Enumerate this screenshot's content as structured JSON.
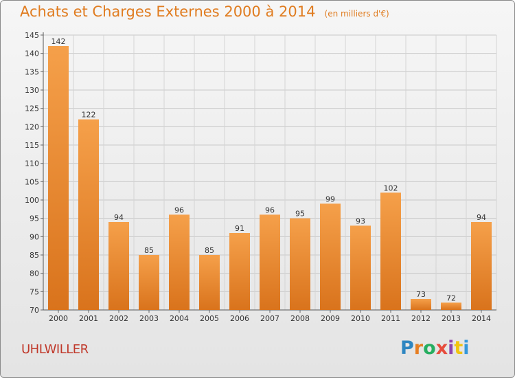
{
  "header": {
    "title": "Achats et Charges Externes 2000 à 2014",
    "subtitle": "(en milliers d'€)"
  },
  "commune": "UHLWILLER",
  "logo": {
    "text": "Proxiti",
    "letter_colors": [
      "#2e86c1",
      "#e67e22",
      "#27ae60",
      "#e74c3c",
      "#8e44ad",
      "#f1c40f",
      "#3498db"
    ]
  },
  "colors": {
    "bar_top": "#f5a04a",
    "bar_bottom": "#d9731c",
    "title": "#e07c20"
  },
  "chart_data": {
    "type": "bar",
    "categories": [
      "2000",
      "2001",
      "2002",
      "2003",
      "2004",
      "2005",
      "2006",
      "2007",
      "2008",
      "2009",
      "2010",
      "2011",
      "2012",
      "2013",
      "2014"
    ],
    "values": [
      142,
      122,
      94,
      85,
      96,
      85,
      91,
      96,
      95,
      99,
      93,
      102,
      73,
      72,
      94
    ],
    "ylim": [
      70,
      145
    ],
    "yticks": [
      70,
      75,
      80,
      85,
      90,
      95,
      100,
      105,
      110,
      115,
      120,
      125,
      130,
      135,
      140,
      145
    ],
    "grid": true,
    "xlabel": "",
    "ylabel": ""
  }
}
